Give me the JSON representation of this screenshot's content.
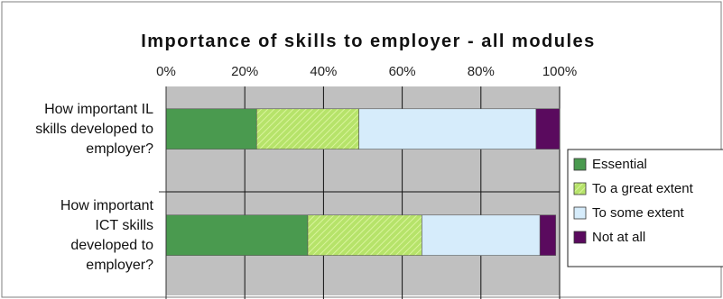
{
  "chart_data": {
    "type": "bar",
    "orientation": "horizontal",
    "stacked": "percent",
    "title": "Importance of skills to employer - all modules",
    "xlim": [
      0,
      100
    ],
    "x_ticks": [
      "0%",
      "20%",
      "40%",
      "60%",
      "80%",
      "100%"
    ],
    "grid": true,
    "legend_position": "right",
    "categories": [
      [
        "How important IL",
        "skills developed to",
        "employer?"
      ],
      [
        "How important",
        "ICT skills",
        "developed to",
        "employer?"
      ]
    ],
    "series": [
      {
        "name": "Essential",
        "values": [
          23,
          36
        ],
        "color": "#4a9a4f"
      },
      {
        "name": "To a great extent",
        "values": [
          26,
          29
        ],
        "color": "#b6e36a"
      },
      {
        "name": "To some extent",
        "values": [
          45,
          30
        ],
        "color": "#d6ecfb"
      },
      {
        "name": "Not at all",
        "values": [
          6,
          4
        ],
        "color": "#5a0a5e"
      }
    ]
  }
}
